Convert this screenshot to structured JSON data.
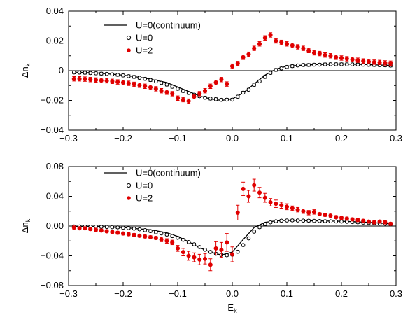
{
  "chart_data": [
    {
      "type": "scatter",
      "panel": "top",
      "xlabel": "",
      "ylabel_main": "Δn",
      "ylabel_sub": "k",
      "xlim": [
        -0.3,
        0.3
      ],
      "ylim": [
        -0.04,
        0.04
      ],
      "xticks": [
        -0.3,
        -0.2,
        -0.1,
        0.0,
        0.1,
        0.2,
        0.3
      ],
      "xtick_labels": [
        "−0.3",
        "−0.2",
        "−0.1",
        "0.0",
        "0.1",
        "0.2",
        "0.3"
      ],
      "yticks": [
        -0.04,
        -0.02,
        0,
        0.02,
        0.04
      ],
      "ytick_labels": [
        "−0.04",
        "−0.02",
        "0",
        "0.02",
        "0.04"
      ],
      "zero_line": true,
      "grid": false,
      "legend_position": "top-left",
      "series": [
        {
          "name": "U=0(continuum)",
          "style": "line",
          "color": "#000000",
          "x": [
            -0.29,
            -0.25,
            -0.2,
            -0.16,
            -0.12,
            -0.1,
            -0.08,
            -0.06,
            -0.04,
            -0.02,
            0.0,
            0.02,
            0.04,
            0.06,
            0.08,
            0.1,
            0.12,
            0.15,
            0.2,
            0.25,
            0.29
          ],
          "y": [
            -0.001,
            -0.0015,
            -0.003,
            -0.005,
            -0.008,
            -0.011,
            -0.014,
            -0.017,
            -0.019,
            -0.02,
            -0.019,
            -0.015,
            -0.009,
            -0.003,
            0.001,
            0.003,
            0.0035,
            0.004,
            0.0045,
            0.004,
            0.0035
          ]
        },
        {
          "name": "U=0",
          "style": "open-circle",
          "color": "#000000",
          "x": [
            -0.29,
            -0.28,
            -0.27,
            -0.26,
            -0.25,
            -0.24,
            -0.23,
            -0.22,
            -0.21,
            -0.2,
            -0.19,
            -0.18,
            -0.17,
            -0.16,
            -0.15,
            -0.14,
            -0.13,
            -0.12,
            -0.11,
            -0.1,
            -0.09,
            -0.08,
            -0.07,
            -0.06,
            -0.05,
            -0.04,
            -0.03,
            -0.02,
            -0.01,
            0.0,
            0.01,
            0.02,
            0.03,
            0.04,
            0.05,
            0.06,
            0.07,
            0.08,
            0.09,
            0.1,
            0.11,
            0.12,
            0.13,
            0.14,
            0.15,
            0.16,
            0.17,
            0.18,
            0.19,
            0.2,
            0.21,
            0.22,
            0.23,
            0.24,
            0.25,
            0.26,
            0.27,
            0.28,
            0.29
          ],
          "y": [
            -0.0012,
            -0.0013,
            -0.0014,
            -0.0016,
            -0.0018,
            -0.002,
            -0.0022,
            -0.0025,
            -0.0028,
            -0.0032,
            -0.0037,
            -0.0042,
            -0.0048,
            -0.0055,
            -0.0063,
            -0.0072,
            -0.0082,
            -0.0094,
            -0.0108,
            -0.0122,
            -0.0137,
            -0.015,
            -0.0162,
            -0.0172,
            -0.0182,
            -0.0188,
            -0.0192,
            -0.0196,
            -0.0195,
            -0.0195,
            -0.0175,
            -0.0148,
            -0.0128,
            -0.0095,
            -0.0072,
            -0.0042,
            -0.0015,
            0.0005,
            0.0015,
            0.0025,
            0.003,
            0.0035,
            0.0038,
            0.0038,
            0.004,
            0.004,
            0.0042,
            0.0043,
            0.0043,
            0.0043,
            0.0042,
            0.0042,
            0.0041,
            0.004,
            0.0039,
            0.0038,
            0.0037,
            0.0036,
            0.0034
          ],
          "yerr": 0.0009
        },
        {
          "name": "U=2",
          "style": "filled-circle",
          "color": "#e00000",
          "x": [
            -0.29,
            -0.28,
            -0.27,
            -0.26,
            -0.25,
            -0.24,
            -0.23,
            -0.22,
            -0.21,
            -0.2,
            -0.19,
            -0.18,
            -0.17,
            -0.16,
            -0.15,
            -0.14,
            -0.13,
            -0.12,
            -0.11,
            -0.1,
            -0.09,
            -0.08,
            -0.07,
            -0.06,
            -0.05,
            -0.04,
            -0.03,
            -0.02,
            -0.01,
            0.0,
            0.01,
            0.02,
            0.03,
            0.04,
            0.05,
            0.06,
            0.07,
            0.08,
            0.09,
            0.1,
            0.11,
            0.12,
            0.13,
            0.14,
            0.15,
            0.16,
            0.17,
            0.18,
            0.19,
            0.2,
            0.21,
            0.22,
            0.23,
            0.24,
            0.25,
            0.26,
            0.27,
            0.28,
            0.29
          ],
          "y": [
            -0.0055,
            -0.0055,
            -0.0057,
            -0.006,
            -0.0063,
            -0.0066,
            -0.0068,
            -0.0072,
            -0.0076,
            -0.008,
            -0.0085,
            -0.0092,
            -0.0098,
            -0.0105,
            -0.0112,
            -0.0122,
            -0.0135,
            -0.0145,
            -0.0155,
            -0.0185,
            -0.0195,
            -0.0205,
            -0.0175,
            -0.0155,
            -0.0135,
            -0.0105,
            -0.008,
            -0.006,
            -0.009,
            0.003,
            0.0048,
            0.009,
            0.011,
            0.015,
            0.018,
            0.022,
            0.024,
            0.02,
            0.019,
            0.018,
            0.017,
            0.016,
            0.015,
            0.0135,
            0.012,
            0.0115,
            0.0105,
            0.01,
            0.009,
            0.0085,
            0.008,
            0.0075,
            0.007,
            0.0065,
            0.006,
            0.0057,
            0.0055,
            0.0052,
            0.005
          ],
          "yerr": 0.0015
        }
      ]
    },
    {
      "type": "scatter",
      "panel": "bottom",
      "xlabel_main": "E",
      "xlabel_sub": "k",
      "ylabel_main": "Δn",
      "ylabel_sub": "k",
      "xlim": [
        -0.3,
        0.3
      ],
      "ylim": [
        -0.08,
        0.08
      ],
      "xticks": [
        -0.3,
        -0.2,
        -0.1,
        0.0,
        0.1,
        0.2,
        0.3
      ],
      "xtick_labels": [
        "−0.3",
        "−0.2",
        "−0.1",
        "0.0",
        "0.1",
        "0.2",
        "0.3"
      ],
      "yticks": [
        -0.08,
        -0.04,
        0,
        0.04,
        0.08
      ],
      "ytick_labels": [
        "−0.08",
        "−0.04",
        "0.00",
        "0.04",
        "0.08"
      ],
      "zero_line": true,
      "grid": false,
      "legend_position": "top-left",
      "series": [
        {
          "name": "U=0(continuum)",
          "style": "line",
          "color": "#000000",
          "x": [
            -0.29,
            -0.25,
            -0.2,
            -0.15,
            -0.12,
            -0.1,
            -0.08,
            -0.06,
            -0.04,
            -0.02,
            0.0,
            0.02,
            0.04,
            0.06,
            0.08,
            0.1,
            0.12,
            0.15,
            0.2,
            0.25,
            0.29
          ],
          "y": [
            -0.0005,
            -0.001,
            -0.002,
            -0.005,
            -0.009,
            -0.014,
            -0.021,
            -0.029,
            -0.035,
            -0.039,
            -0.035,
            -0.018,
            -0.002,
            0.005,
            0.007,
            0.0075,
            0.0075,
            0.007,
            0.0065,
            0.005,
            0.003
          ]
        },
        {
          "name": "U=0",
          "style": "open-circle",
          "color": "#000000",
          "x": [
            -0.29,
            -0.28,
            -0.27,
            -0.26,
            -0.25,
            -0.24,
            -0.23,
            -0.22,
            -0.21,
            -0.2,
            -0.19,
            -0.18,
            -0.17,
            -0.16,
            -0.15,
            -0.14,
            -0.13,
            -0.12,
            -0.11,
            -0.1,
            -0.09,
            -0.08,
            -0.07,
            -0.06,
            -0.05,
            -0.04,
            -0.03,
            -0.02,
            -0.01,
            0.0,
            0.01,
            0.02,
            0.03,
            0.04,
            0.05,
            0.06,
            0.07,
            0.08,
            0.09,
            0.1,
            0.11,
            0.12,
            0.13,
            0.14,
            0.15,
            0.16,
            0.17,
            0.18,
            0.19,
            0.2,
            0.21,
            0.22,
            0.23,
            0.24,
            0.25,
            0.26,
            0.27,
            0.28,
            0.29
          ],
          "y": [
            -0.0005,
            -0.0005,
            -0.0006,
            -0.0007,
            -0.0008,
            -0.001,
            -0.0012,
            -0.0015,
            -0.0018,
            -0.0022,
            -0.0028,
            -0.0035,
            -0.0044,
            -0.0055,
            -0.0068,
            -0.0082,
            -0.0098,
            -0.0115,
            -0.0135,
            -0.0158,
            -0.0185,
            -0.0215,
            -0.0245,
            -0.0282,
            -0.0318,
            -0.0348,
            -0.0372,
            -0.0388,
            -0.0392,
            -0.0385,
            -0.0345,
            -0.0255,
            -0.0165,
            -0.0075,
            -0.0015,
            0.0025,
            0.005,
            0.0065,
            0.0072,
            0.0075,
            0.0076,
            0.0075,
            0.0074,
            0.0072,
            0.007,
            0.0068,
            0.0066,
            0.0064,
            0.0062,
            0.006,
            0.0057,
            0.0054,
            0.005,
            0.0046,
            0.0042,
            0.0038,
            0.0034,
            0.0031,
            0.0028
          ],
          "yerr": 0.0015
        },
        {
          "name": "U=2",
          "style": "filled-circle",
          "color": "#e00000",
          "x": [
            -0.29,
            -0.28,
            -0.27,
            -0.26,
            -0.25,
            -0.24,
            -0.23,
            -0.22,
            -0.21,
            -0.2,
            -0.19,
            -0.18,
            -0.17,
            -0.16,
            -0.15,
            -0.14,
            -0.13,
            -0.12,
            -0.11,
            -0.1,
            -0.09,
            -0.08,
            -0.07,
            -0.06,
            -0.05,
            -0.04,
            -0.03,
            -0.02,
            -0.01,
            0.0,
            0.01,
            0.02,
            0.03,
            0.04,
            0.05,
            0.06,
            0.07,
            0.08,
            0.09,
            0.1,
            0.11,
            0.12,
            0.13,
            0.14,
            0.15,
            0.16,
            0.17,
            0.18,
            0.19,
            0.2,
            0.21,
            0.22,
            0.23,
            0.24,
            0.25,
            0.26,
            0.27,
            0.28,
            0.29
          ],
          "y": [
            -0.002,
            -0.003,
            -0.003,
            -0.004,
            -0.005,
            -0.006,
            -0.007,
            -0.008,
            -0.009,
            -0.01,
            -0.011,
            -0.012,
            -0.013,
            -0.014,
            -0.015,
            -0.016,
            -0.018,
            -0.02,
            -0.022,
            -0.03,
            -0.035,
            -0.04,
            -0.042,
            -0.045,
            -0.044,
            -0.052,
            -0.03,
            -0.032,
            -0.022,
            -0.038,
            0.018,
            0.05,
            0.04,
            0.055,
            0.045,
            0.038,
            0.032,
            0.03,
            0.028,
            0.026,
            0.024,
            0.022,
            0.02,
            0.018,
            0.019,
            0.016,
            0.015,
            0.014,
            0.012,
            0.011,
            0.01,
            0.009,
            0.008,
            0.007,
            0.006,
            0.005,
            0.006,
            0.005,
            0.003
          ],
          "yerr": [
            0.002,
            0.002,
            0.002,
            0.002,
            0.002,
            0.002,
            0.002,
            0.002,
            0.002,
            0.002,
            0.002,
            0.002,
            0.002,
            0.002,
            0.002,
            0.002,
            0.003,
            0.003,
            0.003,
            0.004,
            0.005,
            0.006,
            0.006,
            0.007,
            0.007,
            0.008,
            0.009,
            0.01,
            0.012,
            0.01,
            0.01,
            0.009,
            0.008,
            0.008,
            0.007,
            0.006,
            0.005,
            0.005,
            0.004,
            0.004,
            0.003,
            0.003,
            0.003,
            0.003,
            0.003,
            0.002,
            0.002,
            0.002,
            0.002,
            0.002,
            0.002,
            0.002,
            0.002,
            0.002,
            0.002,
            0.002,
            0.002,
            0.002,
            0.002
          ]
        }
      ]
    }
  ]
}
